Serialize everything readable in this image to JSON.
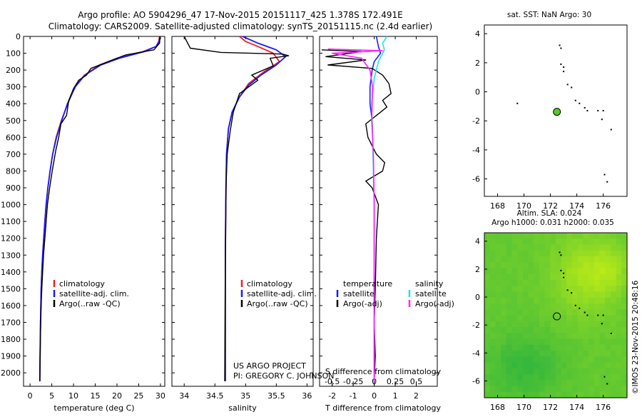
{
  "header": {
    "title_line1": "Argo profile: AO 5904296_47 17-Nov-2015 20151117_425 1.378S 172.491E",
    "title_line2": "Climatology: CARS2009. Satellite-adjusted climatology: synTS_20151115.nc (2.4d earlier)"
  },
  "credits": {
    "project": "US ARGO PROJECT",
    "pi": "PI: GREGORY C. JOHNSON",
    "imos": "©IMOS 23-Nov-2015 20:48:16"
  },
  "colors": {
    "climatology": "#e8202a",
    "satellite": "#1a1aff",
    "argo": "#000000",
    "satellite_salinity": "#22e0e0",
    "argo_salinity": "#ff22ff",
    "map_green_dark": "#22bb22",
    "map_green_light": "#aaee22",
    "marker_fill": "#55cc22"
  },
  "chart_data": [
    {
      "id": "temperature",
      "type": "line",
      "xlabel": "temperature (deg C)",
      "ylabel": "",
      "xlim": [
        -1.5,
        31
      ],
      "ylim": [
        2080,
        0
      ],
      "xticks": [
        0,
        5,
        10,
        15,
        20,
        25,
        30
      ],
      "xtick_labels": [
        "0",
        "5",
        "10",
        "15",
        "20",
        "25",
        "30"
      ],
      "yticks": [
        0,
        100,
        200,
        300,
        400,
        500,
        600,
        700,
        800,
        900,
        1000,
        1100,
        1200,
        1300,
        1400,
        1500,
        1600,
        1700,
        1800,
        1900,
        2000
      ],
      "ytick_labels": [
        "0",
        "100",
        "200",
        "300",
        "400",
        "500",
        "600",
        "700",
        "800",
        "900",
        "1000",
        "1100",
        "1200",
        "1300",
        "1400",
        "1500",
        "1600",
        "1700",
        "1800",
        "1900",
        "2000"
      ],
      "legend": {
        "position": "lower-middle",
        "entries": [
          "climatology",
          "satellite-adj. clim.",
          "Argo(..raw -QC)"
        ]
      },
      "series": [
        {
          "name": "climatology",
          "color_key": "climatology",
          "x": [
            29.8,
            29.6,
            29.0,
            26.0,
            20.0,
            16.0,
            12.5,
            10.3,
            8.7,
            7.2,
            6.0,
            5.2,
            4.6,
            4.1,
            3.7,
            3.4,
            3.15,
            2.9,
            2.7,
            2.55,
            2.4,
            2.3,
            2.25
          ],
          "y": [
            0,
            30,
            60,
            90,
            130,
            170,
            230,
            300,
            400,
            500,
            600,
            700,
            800,
            900,
            1000,
            1100,
            1200,
            1300,
            1400,
            1500,
            1700,
            1900,
            2050
          ]
        },
        {
          "name": "satellite-adj. clim.",
          "color_key": "satellite",
          "x": [
            29.9,
            29.7,
            29.0,
            26.3,
            20.5,
            16.3,
            12.6,
            10.4,
            8.6,
            7.3,
            6.1,
            5.2,
            4.6,
            4.1,
            3.7,
            3.4,
            3.15,
            2.9,
            2.7,
            2.55,
            2.4,
            2.3,
            2.25
          ],
          "y": [
            0,
            30,
            60,
            90,
            130,
            170,
            230,
            300,
            400,
            500,
            600,
            700,
            800,
            900,
            1000,
            1100,
            1200,
            1300,
            1400,
            1500,
            1700,
            1900,
            2050
          ]
        },
        {
          "name": "Argo(..raw -QC)",
          "color_key": "argo",
          "x": [
            29.9,
            29.8,
            28.5,
            22.0,
            18.0,
            14.0,
            13.0,
            11.2,
            10.0,
            8.9,
            8.4,
            7.1,
            6.6,
            5.9,
            5.1,
            4.5,
            4.0,
            3.7,
            3.4,
            3.1,
            2.9,
            2.7,
            2.55,
            2.4,
            2.3,
            2.25
          ],
          "y": [
            0,
            40,
            80,
            110,
            150,
            190,
            230,
            260,
            310,
            380,
            470,
            520,
            600,
            680,
            800,
            900,
            1000,
            1100,
            1200,
            1300,
            1400,
            1500,
            1600,
            1750,
            1900,
            2050
          ]
        }
      ]
    },
    {
      "id": "salinity",
      "type": "line",
      "xlabel": "salinity",
      "xlim": [
        33.8,
        36.1
      ],
      "ylim": [
        2080,
        0
      ],
      "xticks": [
        34,
        34.5,
        35,
        35.5,
        36
      ],
      "xtick_labels": [
        "34",
        "34.5",
        "35",
        "35.5",
        "36"
      ],
      "legend": {
        "position": "lower-middle",
        "entries": [
          "climatology",
          "satellite-adj. clim.",
          "Argo(..raw -QC)"
        ]
      },
      "series": [
        {
          "name": "climatology",
          "color_key": "climatology",
          "x": [
            34.9,
            35.0,
            35.2,
            35.45,
            35.55,
            35.3,
            35.05,
            34.9,
            34.78,
            34.72,
            34.69,
            34.68,
            34.67,
            34.67
          ],
          "y": [
            0,
            30,
            60,
            100,
            150,
            210,
            280,
            360,
            450,
            550,
            700,
            900,
            1300,
            2050
          ]
        },
        {
          "name": "satellite-adj. clim.",
          "color_key": "satellite",
          "x": [
            34.95,
            35.2,
            35.5,
            35.65,
            35.5,
            35.25,
            35.05,
            34.9,
            34.78,
            34.72,
            34.69,
            34.68,
            34.67,
            34.67
          ],
          "y": [
            0,
            40,
            80,
            120,
            170,
            230,
            290,
            360,
            450,
            550,
            700,
            900,
            1300,
            2050
          ]
        },
        {
          "name": "Argo(..raw -QC)",
          "color_key": "argo",
          "x": [
            34.0,
            34.1,
            34.6,
            35.6,
            35.7,
            35.4,
            35.45,
            35.1,
            35.2,
            34.9,
            34.8,
            34.75,
            34.7,
            34.68,
            34.67,
            34.66
          ],
          "y": [
            0,
            70,
            95,
            105,
            115,
            130,
            175,
            230,
            260,
            340,
            450,
            560,
            700,
            900,
            1300,
            2050
          ]
        }
      ]
    },
    {
      "id": "difference",
      "type": "line",
      "xlabel": "T difference from climatology",
      "xlabel_top": "S difference from climatology",
      "xlim_T": [
        -2.6,
        3.0
      ],
      "xlim_S": [
        -0.65,
        0.75
      ],
      "ylim": [
        2080,
        0
      ],
      "xticks_T": [
        -2,
        -1,
        0,
        1,
        2
      ],
      "xtick_labels_T": [
        "-2",
        "-1",
        "0",
        "1",
        "2"
      ],
      "xticks_S": [
        -0.5,
        -0.25,
        0,
        0.25,
        0.5
      ],
      "xtick_labels_S": [
        "-0.5",
        "-0.25",
        "0",
        "0.25",
        "0.5"
      ],
      "legend": {
        "temperature_title": "temperature",
        "salinity_title": "salinity",
        "temperature_entries": [
          "satellite",
          "Argo(-adj)"
        ],
        "salinity_entries": [
          "satellite",
          "Argo(-adj)"
        ]
      },
      "series": [
        {
          "name": "T satellite",
          "color_key": "satellite",
          "unit": "T",
          "x": [
            0.1,
            0.2,
            0.3,
            0.0,
            -0.1,
            -0.2,
            -0.2,
            -0.1,
            -0.05,
            0.0,
            0.0,
            0.0
          ],
          "y": [
            0,
            60,
            100,
            150,
            200,
            300,
            400,
            500,
            700,
            1000,
            1500,
            2050
          ]
        },
        {
          "name": "T Argo(-adj)",
          "color_key": "argo",
          "unit": "T",
          "x": [
            -2.5,
            -0.6,
            -2.3,
            -0.4,
            -2.2,
            -0.1,
            0.4,
            0.7,
            0.8,
            0.4,
            0.6,
            0.2,
            -0.4,
            -0.3,
            0.1,
            0.5,
            0.4,
            -0.4,
            -0.1,
            0.2,
            0.1,
            0.05,
            0.0,
            0.05,
            0.0
          ],
          "y": [
            80,
            90,
            120,
            140,
            170,
            190,
            230,
            280,
            340,
            380,
            420,
            460,
            520,
            600,
            700,
            750,
            800,
            860,
            900,
            1000,
            1200,
            1500,
            1700,
            1900,
            2050
          ]
        },
        {
          "name": "S satellite",
          "color_key": "satellite_salinity",
          "unit": "S",
          "x": [
            0.15,
            0.1,
            0.12,
            0.05,
            0.0,
            -0.03,
            -0.02,
            0.0,
            0.0,
            0.0
          ],
          "y": [
            0,
            40,
            80,
            150,
            250,
            400,
            600,
            1000,
            1500,
            2050
          ]
        },
        {
          "name": "S Argo(-adj)",
          "color_key": "argo_salinity",
          "unit": "S",
          "x": [
            -0.55,
            0.1,
            -0.5,
            -0.15,
            -0.05,
            -0.02,
            -0.03,
            -0.01,
            0.0,
            0.0,
            0.0
          ],
          "y": [
            75,
            85,
            100,
            130,
            200,
            300,
            500,
            700,
            1000,
            1500,
            2050
          ]
        }
      ]
    },
    {
      "id": "sst_map",
      "type": "scatter",
      "title": "sat. SST: NaN Argo: 30",
      "xlim": [
        167,
        177.8
      ],
      "ylim": [
        -7.2,
        4.6
      ],
      "xticks": [
        168,
        170,
        172,
        174,
        176
      ],
      "xtick_labels": [
        "168",
        "170",
        "172",
        "174",
        "176"
      ],
      "yticks": [
        -6,
        -4,
        -2,
        0,
        2,
        4
      ],
      "ytick_labels": [
        "-6",
        "-4",
        "-2",
        "0",
        "2",
        "4"
      ],
      "float_position": {
        "lon": 172.491,
        "lat": -1.378
      },
      "islands": [
        [
          172.7,
          3.2
        ],
        [
          172.8,
          3.0
        ],
        [
          172.8,
          1.9
        ],
        [
          173.0,
          1.7
        ],
        [
          173.0,
          1.4
        ],
        [
          173.3,
          0.5
        ],
        [
          173.6,
          0.3
        ],
        [
          173.9,
          -0.6
        ],
        [
          174.2,
          -0.8
        ],
        [
          174.6,
          -1.1
        ],
        [
          174.8,
          -1.3
        ],
        [
          175.6,
          -1.3
        ],
        [
          176.0,
          -1.3
        ],
        [
          175.9,
          -1.9
        ],
        [
          176.6,
          -2.6
        ],
        [
          176.1,
          -5.7
        ],
        [
          176.3,
          -6.2
        ],
        [
          169.5,
          -0.8
        ]
      ]
    },
    {
      "id": "sla_map",
      "type": "heatmap",
      "title": "Altim. SLA: 0.024",
      "subtitle": "Argo h1000: 0.031 h2000: 0.035",
      "xlim": [
        167,
        177.8
      ],
      "ylim": [
        -7.2,
        4.6
      ],
      "xticks": [
        168,
        170,
        172,
        174,
        176
      ],
      "xtick_labels": [
        "168",
        "170",
        "172",
        "174",
        "176"
      ],
      "yticks": [
        -6,
        -4,
        -2,
        0,
        2,
        4
      ],
      "ytick_labels": [
        "-6",
        "-4",
        "-2",
        "0",
        "2",
        "4"
      ],
      "float_position": {
        "lon": 172.491,
        "lat": -1.378
      },
      "islands": [
        [
          172.7,
          3.2
        ],
        [
          172.8,
          3.0
        ],
        [
          172.8,
          1.9
        ],
        [
          173.0,
          1.7
        ],
        [
          173.0,
          1.4
        ],
        [
          173.3,
          0.5
        ],
        [
          173.6,
          0.3
        ],
        [
          173.9,
          -0.6
        ],
        [
          174.2,
          -0.8
        ],
        [
          174.6,
          -1.1
        ],
        [
          174.8,
          -1.3
        ],
        [
          175.6,
          -1.3
        ],
        [
          176.0,
          -1.3
        ],
        [
          175.9,
          -1.9
        ],
        [
          176.6,
          -2.6
        ],
        [
          176.1,
          -5.7
        ],
        [
          176.3,
          -6.2
        ]
      ]
    }
  ]
}
